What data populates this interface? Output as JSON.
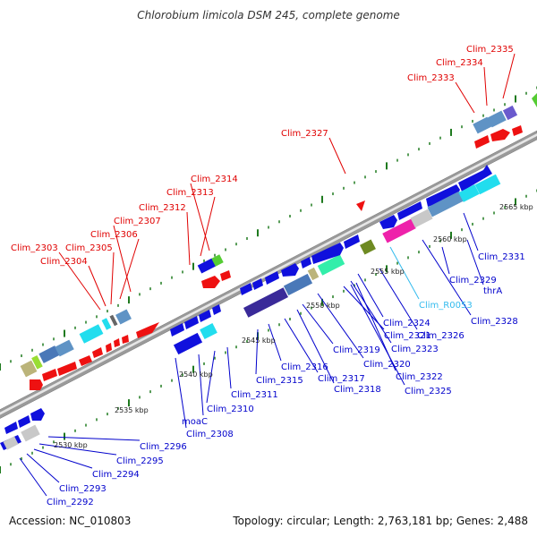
{
  "title": "Chlorobium limicola DSM 245, complete genome",
  "footer": {
    "accession": "Accession: NC_010803",
    "stats": "Topology: circular; Length: 2,763,181 bp; Genes: 2,488"
  },
  "colors": {
    "backbone": "#a6a6a6",
    "tick": "#1f7a1f",
    "label_red": "#e00000",
    "label_blue": "#0000cc",
    "label_cyan": "#33bbee",
    "gene_red": "#ee1111",
    "gene_blue": "#1010dd"
  },
  "scale_labels": [
    "2530 kbp",
    "2535 kbp",
    "2540 kbp",
    "2545 kbp",
    "2550 kbp",
    "2555 kbp",
    "2560 kbp",
    "2565 kbp"
  ],
  "outer_labels": [
    "Clim_2292",
    "Clim_2293",
    "Clim_2294",
    "Clim_2295",
    "Clim_2296",
    "Clim_2308",
    "moaC",
    "Clim_2310",
    "Clim_2311",
    "Clim_2315",
    "Clim_2316",
    "Clim_2317",
    "Clim_2318",
    "Clim_2319",
    "Clim_2320",
    "Clim_2321",
    "Clim_2322",
    "Clim_2323",
    "Clim_2324",
    "Clim_2325",
    "Clim_2326",
    "Clim_R0053",
    "Clim_2328",
    "thrA",
    "Clim_2329",
    "Clim_2331",
    "Clim_2303",
    "Clim_2304",
    "Clim_2305",
    "Clim_2306",
    "Clim_2307",
    "Clim_2312",
    "Clim_2313",
    "Clim_2314",
    "Clim_2327",
    "Clim_2333",
    "Clim_2334",
    "Clim_2335"
  ]
}
